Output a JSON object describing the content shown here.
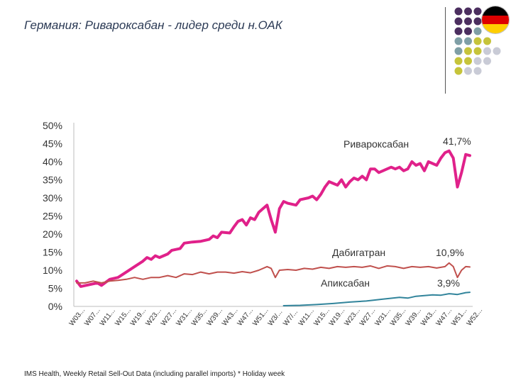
{
  "title": "Германия: Ривароксабан -  лидер среди н.ОАК",
  "footer": "IMS Health, Weekly Retail Sell-Out Data (including parallel imports) * Holiday week",
  "colors": {
    "rivaroxaban": "#e0218a",
    "dabigatran": "#c0504d",
    "apixaban": "#31849b",
    "dot_purple": "#4b2e5f",
    "dot_teal": "#7f9fa6",
    "dot_olive": "#c6c43a",
    "dot_grey": "#c9cbd6",
    "flag_black": "#000000",
    "flag_red": "#dd0000",
    "flag_gold": "#ffce00"
  },
  "chart_data": {
    "type": "line",
    "ylim": [
      0,
      50
    ],
    "yticks": [
      "0%",
      "5%",
      "10%",
      "15%",
      "20%",
      "25%",
      "30%",
      "35%",
      "40%",
      "45%",
      "50%"
    ],
    "xtick_labels": [
      "W03...",
      "W07...",
      "W11...",
      "W15...",
      "W19...",
      "W23...",
      "W27...",
      "W31...",
      "W35...",
      "W39...",
      "W43...",
      "W47...",
      "W51...",
      "W3/...",
      "W7/...",
      "W11...",
      "W15...",
      "W19...",
      "W23...",
      "W27...",
      "W31...",
      "W35...",
      "W39...",
      "W43...",
      "W47...",
      "W51...",
      "W52..."
    ],
    "series": [
      {
        "name": "Ривароксабан",
        "end_label": "41,7%",
        "color": "#e0218a",
        "points": [
          [
            0,
            7
          ],
          [
            1,
            5.5
          ],
          [
            3,
            6
          ],
          [
            5,
            6.5
          ],
          [
            6,
            5.8
          ],
          [
            8,
            7.5
          ],
          [
            10,
            8
          ],
          [
            12,
            9.5
          ],
          [
            14,
            11
          ],
          [
            16,
            12.5
          ],
          [
            17,
            13.5
          ],
          [
            18,
            13
          ],
          [
            19,
            14
          ],
          [
            20,
            13.5
          ],
          [
            22,
            14.5
          ],
          [
            23,
            15.5
          ],
          [
            25,
            16
          ],
          [
            26,
            17.5
          ],
          [
            28,
            17.8
          ],
          [
            30,
            18
          ],
          [
            32,
            18.5
          ],
          [
            33,
            19.5
          ],
          [
            34,
            19
          ],
          [
            35,
            20.5
          ],
          [
            37,
            20.3
          ],
          [
            38,
            22
          ],
          [
            39,
            23.5
          ],
          [
            40,
            24
          ],
          [
            41,
            22.5
          ],
          [
            42,
            24.5
          ],
          [
            43,
            24
          ],
          [
            44,
            26
          ],
          [
            45,
            27
          ],
          [
            46,
            28
          ],
          [
            47,
            24
          ],
          [
            48,
            20.5
          ],
          [
            49,
            27
          ],
          [
            50,
            29
          ],
          [
            51,
            28.5
          ],
          [
            53,
            28
          ],
          [
            54,
            29.5
          ],
          [
            56,
            30
          ],
          [
            57,
            30.5
          ],
          [
            58,
            29.5
          ],
          [
            59,
            31
          ],
          [
            60,
            33
          ],
          [
            61,
            34.5
          ],
          [
            62,
            34
          ],
          [
            63,
            33.5
          ],
          [
            64,
            35
          ],
          [
            65,
            33
          ],
          [
            66,
            34.5
          ],
          [
            67,
            35.5
          ],
          [
            68,
            35
          ],
          [
            69,
            36
          ],
          [
            70,
            35
          ],
          [
            71,
            38
          ],
          [
            72,
            38
          ],
          [
            73,
            37
          ],
          [
            74,
            37.5
          ],
          [
            75,
            38
          ],
          [
            76,
            38.5
          ],
          [
            77,
            38
          ],
          [
            78,
            38.5
          ],
          [
            79,
            37.5
          ],
          [
            80,
            38
          ],
          [
            81,
            40
          ],
          [
            82,
            39
          ],
          [
            83,
            39.5
          ],
          [
            84,
            37.5
          ],
          [
            85,
            40
          ],
          [
            86,
            39.5
          ],
          [
            87,
            39
          ],
          [
            88,
            41
          ],
          [
            89,
            42.5
          ],
          [
            90,
            43
          ],
          [
            91,
            41
          ],
          [
            92,
            33
          ],
          [
            93,
            37
          ],
          [
            94,
            42
          ],
          [
            95,
            41.7
          ]
        ]
      },
      {
        "name": "Дабигатран",
        "end_label": "10,9%",
        "color": "#c0504d",
        "points": [
          [
            0,
            6.5
          ],
          [
            2,
            6.5
          ],
          [
            4,
            7
          ],
          [
            6,
            6.5
          ],
          [
            8,
            7
          ],
          [
            10,
            7.2
          ],
          [
            12,
            7.5
          ],
          [
            14,
            8
          ],
          [
            16,
            7.5
          ],
          [
            18,
            8
          ],
          [
            20,
            8
          ],
          [
            22,
            8.5
          ],
          [
            24,
            8
          ],
          [
            26,
            9
          ],
          [
            28,
            8.8
          ],
          [
            30,
            9.5
          ],
          [
            32,
            9
          ],
          [
            34,
            9.5
          ],
          [
            36,
            9.5
          ],
          [
            38,
            9.2
          ],
          [
            40,
            9.6
          ],
          [
            42,
            9.3
          ],
          [
            44,
            10
          ],
          [
            46,
            11
          ],
          [
            47,
            10.5
          ],
          [
            48,
            8
          ],
          [
            49,
            10
          ],
          [
            51,
            10.2
          ],
          [
            53,
            10
          ],
          [
            55,
            10.5
          ],
          [
            57,
            10.3
          ],
          [
            59,
            10.8
          ],
          [
            61,
            10.5
          ],
          [
            63,
            11
          ],
          [
            65,
            10.8
          ],
          [
            67,
            11
          ],
          [
            69,
            10.8
          ],
          [
            71,
            11.2
          ],
          [
            73,
            10.5
          ],
          [
            75,
            11.2
          ],
          [
            77,
            11
          ],
          [
            79,
            10.5
          ],
          [
            81,
            11
          ],
          [
            83,
            10.8
          ],
          [
            85,
            11
          ],
          [
            87,
            10.6
          ],
          [
            89,
            11
          ],
          [
            90,
            12
          ],
          [
            91,
            11
          ],
          [
            92,
            8
          ],
          [
            93,
            10
          ],
          [
            94,
            11
          ],
          [
            95,
            10.9
          ]
        ]
      },
      {
        "name": "Апиксабан",
        "end_label": "3,9%",
        "color": "#31849b",
        "points": [
          [
            50,
            0.2
          ],
          [
            54,
            0.3
          ],
          [
            58,
            0.5
          ],
          [
            62,
            0.8
          ],
          [
            66,
            1.2
          ],
          [
            70,
            1.5
          ],
          [
            74,
            2
          ],
          [
            78,
            2.5
          ],
          [
            80,
            2.3
          ],
          [
            82,
            2.8
          ],
          [
            84,
            3
          ],
          [
            86,
            3.2
          ],
          [
            88,
            3.1
          ],
          [
            90,
            3.5
          ],
          [
            92,
            3.3
          ],
          [
            94,
            3.8
          ],
          [
            95,
            3.9
          ]
        ]
      }
    ]
  }
}
